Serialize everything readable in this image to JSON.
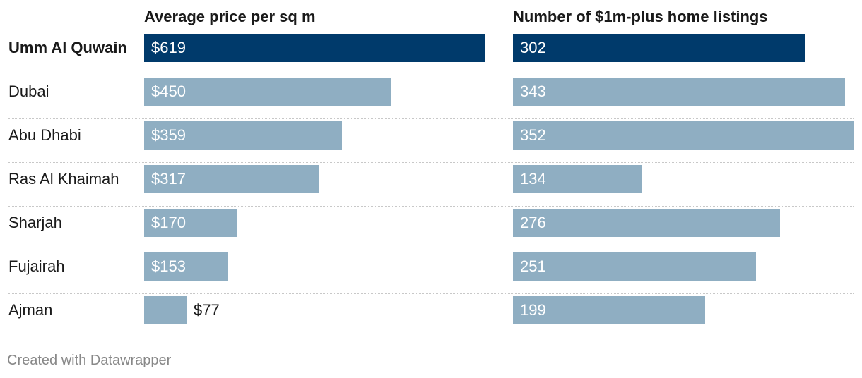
{
  "chart_data": {
    "type": "bar",
    "layout": "split-bars",
    "categories": [
      "Umm Al Quwain",
      "Dubai",
      "Abu Dhabi",
      "Ras Al Khaimah",
      "Sharjah",
      "Fujairah",
      "Ajman"
    ],
    "highlight": "Umm Al Quwain",
    "series": [
      {
        "name": "Average price per sq m",
        "values": [
          619,
          450,
          359,
          317,
          170,
          153,
          77
        ],
        "labels": [
          "$619",
          "$450",
          "$359",
          "$317",
          "$170",
          "$153",
          "$77"
        ],
        "xlim": [
          0,
          619
        ]
      },
      {
        "name": "Number of $1m-plus home listings",
        "values": [
          302,
          343,
          352,
          134,
          276,
          251,
          199
        ],
        "labels": [
          "302",
          "343",
          "352",
          "134",
          "276",
          "251",
          "199"
        ],
        "xlim": [
          0,
          352
        ]
      }
    ],
    "colors": {
      "highlight": "#003a6b",
      "default": "#8faec2"
    }
  },
  "footer": "Created with Datawrapper"
}
